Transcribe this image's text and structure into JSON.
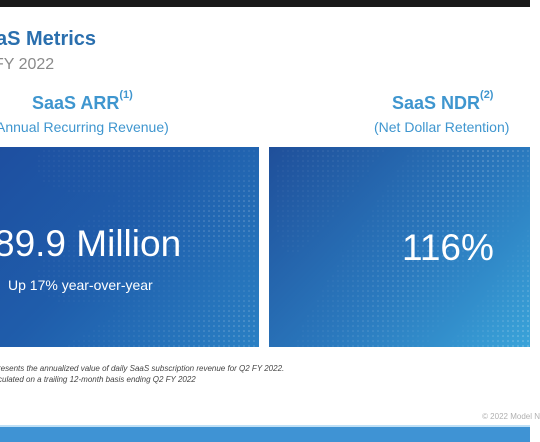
{
  "header": {
    "title": "aS Metrics",
    "subtitle": "FY 2022"
  },
  "left_metric": {
    "heading": "SaaS ARR",
    "heading_note": "(1)",
    "caption": "Annual Recurring Revenue)",
    "value": "89.9 Million",
    "detail": "Up 17% year-over-year"
  },
  "right_metric": {
    "heading": "SaaS NDR",
    "heading_note": "(2)",
    "caption": "(Net Dollar Retention)",
    "value": "116%"
  },
  "footnotes": [
    "resents the annualized value of daily SaaS subscription revenue for Q2 FY 2022.",
    "culated on a trailing 12-month basis ending Q2 FY 2022"
  ],
  "copyright": "© 2022 Model N",
  "colors": {
    "title": "#2a6fae",
    "accent": "#3f96cf",
    "panel_dark": "#1e4fa0",
    "panel_light": "#3aa3d9",
    "bottom_bar": "#3f93d4"
  }
}
